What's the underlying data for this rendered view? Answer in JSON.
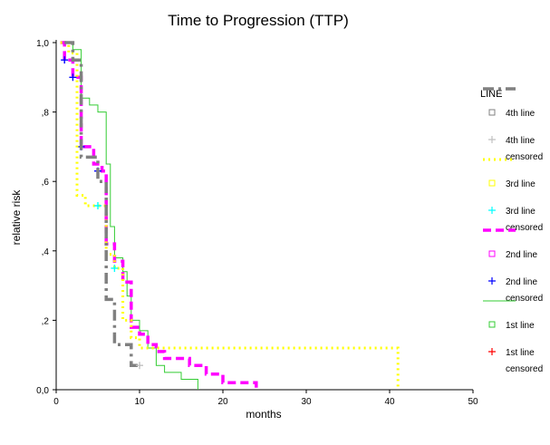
{
  "chart_data": {
    "type": "line",
    "title": "Time to Progression (TTP)",
    "xlabel": "months",
    "ylabel": "relative risk",
    "xlim": [
      0,
      50
    ],
    "ylim": [
      0,
      1
    ],
    "x_ticks": [
      0,
      10,
      20,
      30,
      40,
      50
    ],
    "x_tick_labels": [
      "0",
      "10",
      "20",
      "30",
      "40",
      "50"
    ],
    "y_ticks": [
      0,
      0.2,
      0.4,
      0.6,
      0.8,
      1.0
    ],
    "y_tick_labels": [
      "0,0",
      ",2",
      ",4",
      ",6",
      ",8",
      "1,0"
    ],
    "grid": false,
    "legend_title": "LINE",
    "legend_placement": "right",
    "series": [
      {
        "name": "1st line",
        "color": "#33cc33",
        "style": "solid",
        "censor_color": "#ff0000",
        "censored_label": "1st line censored",
        "points": [
          [
            0.5,
            1.0
          ],
          [
            2,
            1.0
          ],
          [
            2,
            0.98
          ],
          [
            3,
            0.98
          ],
          [
            3,
            0.84
          ],
          [
            4,
            0.84
          ],
          [
            4,
            0.82
          ],
          [
            5,
            0.82
          ],
          [
            5,
            0.8
          ],
          [
            6,
            0.8
          ],
          [
            6,
            0.65
          ],
          [
            6.5,
            0.65
          ],
          [
            6.5,
            0.47
          ],
          [
            7,
            0.47
          ],
          [
            7,
            0.38
          ],
          [
            8,
            0.38
          ],
          [
            8,
            0.34
          ],
          [
            8.5,
            0.34
          ],
          [
            8.5,
            0.27
          ],
          [
            9,
            0.27
          ],
          [
            9,
            0.2
          ],
          [
            10,
            0.2
          ],
          [
            10,
            0.17
          ],
          [
            11,
            0.17
          ],
          [
            11,
            0.12
          ],
          [
            12,
            0.12
          ],
          [
            12,
            0.07
          ],
          [
            13,
            0.07
          ],
          [
            13,
            0.05
          ],
          [
            15,
            0.05
          ],
          [
            15,
            0.03
          ],
          [
            17,
            0.03
          ],
          [
            17,
            0.0
          ]
        ],
        "censored": []
      },
      {
        "name": "2nd line",
        "color": "#ff00ff",
        "style": "dashed",
        "censor_color": "#0000ff",
        "censored_label": "2nd line censored",
        "points": [
          [
            0.5,
            1.0
          ],
          [
            1,
            1.0
          ],
          [
            1,
            0.95
          ],
          [
            2,
            0.95
          ],
          [
            2,
            0.9
          ],
          [
            3,
            0.9
          ],
          [
            3,
            0.7
          ],
          [
            4.5,
            0.7
          ],
          [
            4.5,
            0.65
          ],
          [
            5.5,
            0.65
          ],
          [
            5.5,
            0.63
          ],
          [
            6,
            0.63
          ],
          [
            6,
            0.42
          ],
          [
            7,
            0.42
          ],
          [
            7,
            0.37
          ],
          [
            8,
            0.37
          ],
          [
            8,
            0.31
          ],
          [
            9,
            0.31
          ],
          [
            9,
            0.18
          ],
          [
            10,
            0.18
          ],
          [
            10,
            0.16
          ],
          [
            11,
            0.16
          ],
          [
            11,
            0.13
          ],
          [
            12,
            0.13
          ],
          [
            12,
            0.11
          ],
          [
            13,
            0.11
          ],
          [
            13,
            0.09
          ],
          [
            16,
            0.09
          ],
          [
            16,
            0.07
          ],
          [
            18,
            0.07
          ],
          [
            18,
            0.045
          ],
          [
            20,
            0.045
          ],
          [
            20,
            0.02
          ],
          [
            24,
            0.02
          ],
          [
            24,
            0.0
          ]
        ],
        "censored": [
          [
            1,
            0.95
          ],
          [
            2,
            0.9
          ],
          [
            3,
            0.7
          ],
          [
            5,
            0.63
          ]
        ]
      },
      {
        "name": "3rd line",
        "color": "#ffff00",
        "style": "dotted",
        "censor_color": "#00ffff",
        "censored_label": "3rd line censored",
        "points": [
          [
            0.5,
            1.0
          ],
          [
            1.5,
            1.0
          ],
          [
            1.5,
            0.97
          ],
          [
            2.5,
            0.97
          ],
          [
            2.5,
            0.56
          ],
          [
            3.5,
            0.56
          ],
          [
            3.5,
            0.53
          ],
          [
            4,
            0.53
          ],
          [
            4,
            0.53
          ],
          [
            6,
            0.53
          ],
          [
            6,
            0.39
          ],
          [
            7,
            0.39
          ],
          [
            7,
            0.35
          ],
          [
            8,
            0.35
          ],
          [
            8,
            0.2
          ],
          [
            9,
            0.2
          ],
          [
            9,
            0.15
          ],
          [
            10,
            0.15
          ],
          [
            10,
            0.12
          ],
          [
            41,
            0.12
          ],
          [
            41,
            0.0
          ]
        ],
        "censored": [
          [
            5,
            0.53
          ],
          [
            7,
            0.35
          ]
        ]
      },
      {
        "name": "4th line",
        "color": "#808080",
        "style": "dashdot",
        "censor_color": "#c0c0c0",
        "censored_label": "4th line censored",
        "points": [
          [
            1,
            1.0
          ],
          [
            2,
            1.0
          ],
          [
            2,
            0.95
          ],
          [
            3,
            0.95
          ],
          [
            3,
            0.67
          ],
          [
            5,
            0.67
          ],
          [
            5,
            0.6
          ],
          [
            6,
            0.6
          ],
          [
            6,
            0.26
          ],
          [
            7,
            0.26
          ],
          [
            7,
            0.13
          ],
          [
            9,
            0.13
          ],
          [
            9,
            0.07
          ],
          [
            10,
            0.07
          ]
        ],
        "censored": [
          [
            10,
            0.07
          ]
        ]
      }
    ],
    "legend": [
      {
        "label": "4th line",
        "kind": "line",
        "series": 3
      },
      {
        "label": "4th line",
        "kind": "box",
        "color": "#808080"
      },
      {
        "label": "4th line",
        "label2": "censored",
        "kind": "plus",
        "color": "#c0c0c0"
      },
      {
        "label": "3rd line",
        "kind": "line",
        "series": 2
      },
      {
        "label": "3rd line",
        "kind": "box",
        "color": "#ffff00"
      },
      {
        "label": "3rd line",
        "label2": "censored",
        "kind": "plus",
        "color": "#00ffff"
      },
      {
        "label": "2nd line",
        "kind": "line",
        "series": 1
      },
      {
        "label": "2nd line",
        "kind": "box",
        "color": "#ff00ff"
      },
      {
        "label": "2nd line",
        "label2": "censored",
        "kind": "plus",
        "color": "#0000ff"
      },
      {
        "label": "1st line",
        "kind": "line",
        "series": 0
      },
      {
        "label": "1st line",
        "kind": "box",
        "color": "#33cc33"
      },
      {
        "label": "1st line",
        "label2": "censored",
        "kind": "plus",
        "color": "#ff0000"
      }
    ]
  }
}
